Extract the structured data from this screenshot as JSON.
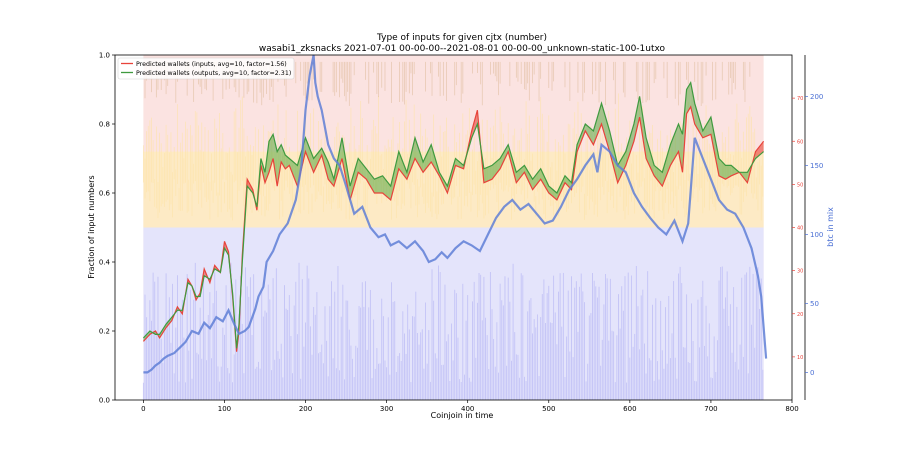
{
  "chart_data": {
    "type": "area",
    "title": "Type of inputs for given cjtx (number)",
    "subtitle": "wasabi1_zksnacks 2021-07-01 00-00-00--2021-08-01 00-00-00_unknown-static-100-1utxo",
    "xlabel": "Coinjoin in time",
    "ylabel": "Fraction of input numbers",
    "ylabel_right_outer": "btc in mix",
    "xlim": [
      -35,
      800
    ],
    "ylim": [
      0.0,
      1.0
    ],
    "right_inner_lim": [
      0,
      80
    ],
    "right_outer_lim": [
      -20,
      230
    ],
    "xticks": [
      0,
      100,
      200,
      300,
      400,
      500,
      600,
      700,
      800
    ],
    "yticks": [
      0.0,
      0.2,
      0.4,
      0.6,
      0.8,
      1.0
    ],
    "right_inner_ticks": [
      10,
      20,
      30,
      40,
      50,
      60,
      70
    ],
    "right_outer_ticks": [
      0,
      50,
      100,
      150,
      200
    ],
    "legend_position": "top-left",
    "colors": {
      "inputs_line": "#e8433a",
      "outputs_line": "#3f9a3f",
      "btc_line": "#5f7fd6",
      "band_blue": "#b9b9f5",
      "band_yellow": "#fdebbf",
      "band_pink": "#f7c9c6",
      "band_tan": "#d9b48f",
      "inner_axis": "#e8433a",
      "outer_axis": "#4a6fd4"
    },
    "series": [
      {
        "name": "Predicted wallets (inputs, avg=10, factor=1.56)",
        "axis": "left",
        "x": [
          0,
          8,
          15,
          20,
          28,
          35,
          42,
          48,
          55,
          60,
          65,
          70,
          75,
          82,
          88,
          95,
          100,
          105,
          110,
          115,
          118,
          122,
          128,
          135,
          140,
          145,
          150,
          155,
          160,
          165,
          170,
          175,
          180,
          190,
          200,
          210,
          220,
          228,
          235,
          245,
          255,
          265,
          275,
          285,
          295,
          305,
          315,
          325,
          335,
          345,
          355,
          365,
          375,
          385,
          395,
          405,
          412,
          420,
          430,
          440,
          450,
          460,
          470,
          480,
          490,
          500,
          510,
          520,
          528,
          535,
          545,
          555,
          565,
          575,
          585,
          595,
          605,
          612,
          620,
          630,
          640,
          650,
          660,
          665,
          670,
          675,
          680,
          690,
          700,
          710,
          718,
          725,
          735,
          745,
          755,
          765
        ],
        "values": [
          0.17,
          0.19,
          0.2,
          0.18,
          0.21,
          0.23,
          0.27,
          0.25,
          0.35,
          0.33,
          0.29,
          0.31,
          0.38,
          0.34,
          0.39,
          0.37,
          0.46,
          0.43,
          0.3,
          0.14,
          0.2,
          0.42,
          0.64,
          0.61,
          0.55,
          0.68,
          0.63,
          0.66,
          0.7,
          0.62,
          0.69,
          0.67,
          0.68,
          0.62,
          0.72,
          0.66,
          0.71,
          0.64,
          0.62,
          0.7,
          0.58,
          0.66,
          0.64,
          0.6,
          0.6,
          0.58,
          0.67,
          0.64,
          0.7,
          0.66,
          0.69,
          0.65,
          0.6,
          0.68,
          0.67,
          0.78,
          0.84,
          0.63,
          0.64,
          0.67,
          0.72,
          0.63,
          0.66,
          0.61,
          0.64,
          0.6,
          0.58,
          0.63,
          0.61,
          0.72,
          0.78,
          0.74,
          0.8,
          0.72,
          0.63,
          0.68,
          0.75,
          0.82,
          0.7,
          0.65,
          0.62,
          0.68,
          0.72,
          0.66,
          0.83,
          0.85,
          0.8,
          0.76,
          0.77,
          0.65,
          0.64,
          0.65,
          0.66,
          0.63,
          0.72,
          0.75
        ]
      },
      {
        "name": "Predicted wallets (outputs, avg=10, factor=2.31)",
        "axis": "left",
        "x": [
          0,
          8,
          15,
          20,
          28,
          35,
          42,
          48,
          55,
          60,
          65,
          70,
          75,
          82,
          88,
          95,
          100,
          105,
          110,
          115,
          118,
          122,
          128,
          135,
          140,
          145,
          150,
          155,
          160,
          165,
          170,
          175,
          180,
          190,
          200,
          210,
          220,
          228,
          235,
          245,
          255,
          265,
          275,
          285,
          295,
          305,
          315,
          325,
          335,
          345,
          355,
          365,
          375,
          385,
          395,
          405,
          412,
          420,
          430,
          440,
          450,
          460,
          470,
          480,
          490,
          500,
          510,
          520,
          528,
          535,
          545,
          555,
          565,
          575,
          585,
          595,
          605,
          612,
          620,
          630,
          640,
          650,
          660,
          665,
          670,
          675,
          680,
          690,
          700,
          710,
          718,
          725,
          735,
          745,
          755,
          765
        ],
        "values": [
          0.18,
          0.2,
          0.19,
          0.19,
          0.22,
          0.24,
          0.26,
          0.26,
          0.34,
          0.33,
          0.3,
          0.3,
          0.36,
          0.35,
          0.38,
          0.37,
          0.44,
          0.42,
          0.31,
          0.15,
          0.22,
          0.4,
          0.62,
          0.6,
          0.56,
          0.7,
          0.66,
          0.75,
          0.77,
          0.72,
          0.74,
          0.71,
          0.7,
          0.68,
          0.76,
          0.7,
          0.73,
          0.69,
          0.64,
          0.76,
          0.62,
          0.7,
          0.67,
          0.64,
          0.65,
          0.62,
          0.72,
          0.66,
          0.76,
          0.69,
          0.74,
          0.66,
          0.62,
          0.7,
          0.68,
          0.76,
          0.8,
          0.67,
          0.68,
          0.7,
          0.74,
          0.66,
          0.68,
          0.64,
          0.67,
          0.62,
          0.6,
          0.65,
          0.63,
          0.74,
          0.8,
          0.78,
          0.86,
          0.78,
          0.68,
          0.72,
          0.8,
          0.88,
          0.76,
          0.68,
          0.66,
          0.74,
          0.8,
          0.77,
          0.9,
          0.92,
          0.86,
          0.78,
          0.82,
          0.7,
          0.68,
          0.68,
          0.66,
          0.66,
          0.7,
          0.72
        ]
      },
      {
        "axis": "right_outer",
        "x": [
          0,
          5,
          10,
          15,
          20,
          25,
          30,
          38,
          45,
          52,
          60,
          68,
          75,
          82,
          90,
          98,
          105,
          112,
          118,
          125,
          130,
          138,
          142,
          148,
          152,
          160,
          168,
          178,
          188,
          195,
          200,
          205,
          210,
          212,
          215,
          220,
          228,
          235,
          242,
          250,
          260,
          270,
          280,
          290,
          298,
          305,
          315,
          325,
          335,
          345,
          352,
          360,
          368,
          375,
          385,
          395,
          405,
          415,
          425,
          435,
          445,
          455,
          465,
          475,
          485,
          495,
          505,
          515,
          525,
          535,
          545,
          555,
          560,
          565,
          575,
          585,
          595,
          605,
          615,
          625,
          635,
          645,
          655,
          665,
          672,
          680,
          690,
          700,
          710,
          720,
          730,
          740,
          750,
          758,
          762,
          768
        ],
        "values": [
          0,
          0,
          2,
          5,
          7,
          10,
          12,
          14,
          18,
          22,
          30,
          28,
          36,
          32,
          40,
          37,
          45,
          35,
          28,
          30,
          33,
          46,
          55,
          62,
          80,
          88,
          100,
          108,
          125,
          150,
          190,
          215,
          230,
          210,
          200,
          190,
          165,
          155,
          150,
          135,
          115,
          120,
          105,
          98,
          100,
          92,
          95,
          90,
          95,
          88,
          80,
          82,
          87,
          83,
          90,
          95,
          92,
          88,
          100,
          112,
          120,
          125,
          118,
          122,
          115,
          108,
          110,
          120,
          132,
          140,
          150,
          158,
          145,
          165,
          160,
          150,
          145,
          130,
          120,
          112,
          105,
          100,
          110,
          95,
          108,
          170,
          155,
          140,
          125,
          118,
          115,
          105,
          90,
          70,
          55,
          10
        ]
      }
    ]
  }
}
